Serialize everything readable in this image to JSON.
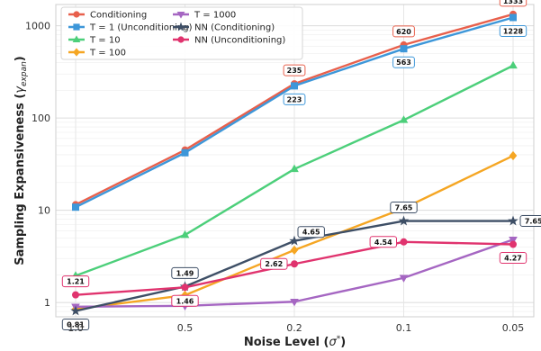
{
  "chart_data": {
    "type": "line",
    "xlabel_main": "Noise Level (",
    "xlabel_sym": "σ",
    "xlabel_sup": "*",
    "xlabel_end": ")",
    "ylabel_main": "Sampling Expansiveness (",
    "ylabel_sym": "γ",
    "ylabel_sub": "expan",
    "ylabel_end": ")",
    "categories": [
      "1.0",
      "0.5",
      "0.2",
      "0.1",
      "0.05"
    ],
    "yscale": "log",
    "ylim": [
      0.7,
      1700
    ],
    "yticks": [
      {
        "value": 1,
        "label": "1"
      },
      {
        "value": 10,
        "label": "10"
      },
      {
        "value": 100,
        "label": "100"
      },
      {
        "value": 1000,
        "label": "1000"
      }
    ],
    "grid": true,
    "legend": "top-left",
    "series": [
      {
        "name": "Conditioning",
        "color": "#e8604c",
        "marker": "circle",
        "values": [
          11.5,
          45,
          235,
          620,
          1333
        ]
      },
      {
        "name": "T = 1 (Unconditioning)",
        "color": "#3d97d9",
        "marker": "square",
        "values": [
          10.8,
          42,
          223,
          563,
          1228
        ]
      },
      {
        "name": "T = 10",
        "color": "#4ccf7a",
        "marker": "triangle-up",
        "values": [
          1.95,
          5.4,
          28,
          95,
          370
        ]
      },
      {
        "name": "T = 100",
        "color": "#f5a623",
        "marker": "diamond",
        "values": [
          0.85,
          1.2,
          3.7,
          10.5,
          39
        ]
      },
      {
        "name": "T = 1000",
        "color": "#a566c2",
        "marker": "triangle-down",
        "values": [
          0.9,
          0.92,
          1.02,
          1.85,
          4.8
        ]
      },
      {
        "name": "NN (Conditioning)",
        "color": "#3e4f66",
        "marker": "star",
        "values": [
          0.81,
          1.49,
          4.65,
          7.65,
          7.65
        ]
      },
      {
        "name": "NN (Unconditioning)",
        "color": "#e0336e",
        "marker": "circle",
        "values": [
          1.21,
          1.46,
          2.62,
          4.54,
          4.27
        ]
      }
    ],
    "annotations": [
      {
        "text": "1333",
        "series": 0,
        "point": 4,
        "pos": "above",
        "border": "#e8604c"
      },
      {
        "text": "620",
        "series": 0,
        "point": 3,
        "pos": "above",
        "border": "#e8604c"
      },
      {
        "text": "235",
        "series": 0,
        "point": 2,
        "pos": "above",
        "border": "#e8604c"
      },
      {
        "text": "1228",
        "series": 1,
        "point": 4,
        "pos": "below",
        "border": "#3d97d9"
      },
      {
        "text": "563",
        "series": 1,
        "point": 3,
        "pos": "below",
        "border": "#3d97d9"
      },
      {
        "text": "223",
        "series": 1,
        "point": 2,
        "pos": "below",
        "border": "#3d97d9"
      },
      {
        "text": "7.65",
        "series": 5,
        "point": 4,
        "pos": "right",
        "border": "#3e4f66"
      },
      {
        "text": "7.65",
        "series": 5,
        "point": 3,
        "pos": "above",
        "border": "#3e4f66"
      },
      {
        "text": "4.65",
        "series": 5,
        "point": 2,
        "pos": "above-right",
        "border": "#3e4f66"
      },
      {
        "text": "1.49",
        "series": 5,
        "point": 1,
        "pos": "above",
        "border": "#3e4f66"
      },
      {
        "text": "0.81",
        "series": 5,
        "point": 0,
        "pos": "below",
        "border": "#3e4f66"
      },
      {
        "text": "1.21",
        "series": 6,
        "point": 0,
        "pos": "above",
        "border": "#e0336e"
      },
      {
        "text": "1.46",
        "series": 6,
        "point": 1,
        "pos": "below",
        "border": "#e0336e"
      },
      {
        "text": "2.62",
        "series": 6,
        "point": 2,
        "pos": "left",
        "border": "#e0336e"
      },
      {
        "text": "4.54",
        "series": 6,
        "point": 3,
        "pos": "left",
        "border": "#e0336e"
      },
      {
        "text": "4.27",
        "series": 6,
        "point": 4,
        "pos": "below",
        "border": "#e0336e"
      }
    ]
  }
}
